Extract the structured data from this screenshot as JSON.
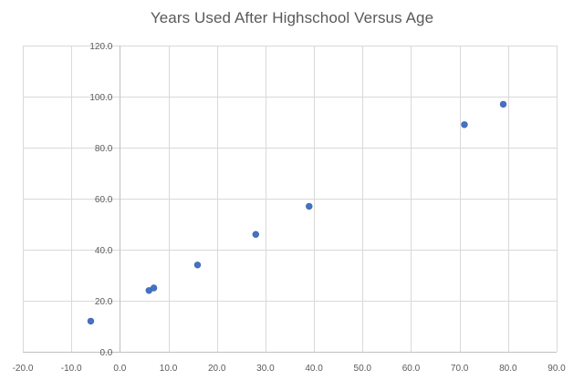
{
  "chart_data": {
    "type": "scatter",
    "title": "Years Used After Highschool Versus Age",
    "xlabel": "",
    "ylabel": "",
    "xlim": [
      -20,
      90
    ],
    "ylim": [
      0,
      120
    ],
    "x_ticks": [
      -20,
      -10,
      0,
      10,
      20,
      30,
      40,
      50,
      60,
      70,
      80,
      90
    ],
    "y_ticks": [
      0,
      20,
      40,
      60,
      80,
      100,
      120
    ],
    "x_tick_labels": [
      "-20.0",
      "-10.0",
      "0.0",
      "10.0",
      "20.0",
      "30.0",
      "40.0",
      "50.0",
      "60.0",
      "70.0",
      "80.0",
      "90.0"
    ],
    "y_tick_labels": [
      "0.0",
      "20.0",
      "40.0",
      "60.0",
      "80.0",
      "100.0",
      "120.0"
    ],
    "grid": true,
    "legend": "none",
    "series": [
      {
        "color": "#4472C4",
        "points": [
          {
            "x": -6,
            "y": 12
          },
          {
            "x": 6,
            "y": 24
          },
          {
            "x": 7,
            "y": 25
          },
          {
            "x": 16,
            "y": 34
          },
          {
            "x": 28,
            "y": 46
          },
          {
            "x": 39,
            "y": 57
          },
          {
            "x": 71,
            "y": 89
          },
          {
            "x": 79,
            "y": 97
          }
        ]
      }
    ]
  }
}
